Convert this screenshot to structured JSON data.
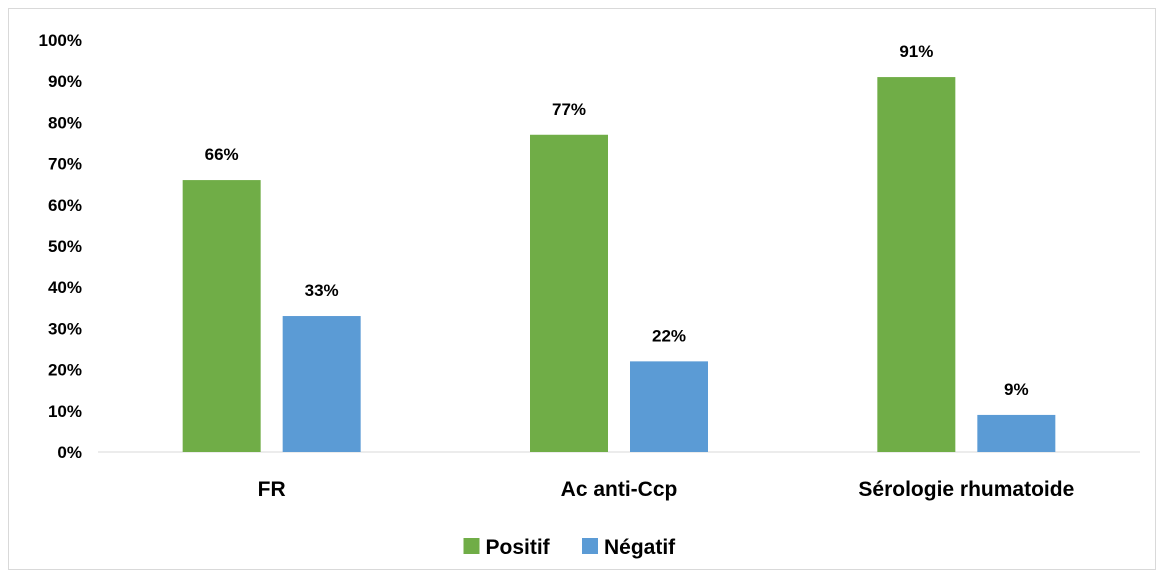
{
  "chart_data": {
    "type": "bar",
    "categories": [
      "FR",
      "Ac anti-Ccp",
      "Sérologie rhumatoide"
    ],
    "series": [
      {
        "name": "Positif",
        "values": [
          66,
          77,
          91
        ],
        "labels": [
          "66%",
          "77%",
          "91%"
        ],
        "color": "#70ad47"
      },
      {
        "name": "Négatif",
        "values": [
          33,
          22,
          9
        ],
        "labels": [
          "33%",
          "22%",
          "9%"
        ],
        "color": "#5b9bd5"
      }
    ],
    "ylim": [
      0,
      100
    ],
    "yticks": [
      "0%",
      "10%",
      "20%",
      "30%",
      "40%",
      "50%",
      "60%",
      "70%",
      "80%",
      "90%",
      "100%"
    ],
    "grid": false,
    "legend_position": "bottom",
    "title": "",
    "xlabel": "",
    "ylabel": ""
  }
}
